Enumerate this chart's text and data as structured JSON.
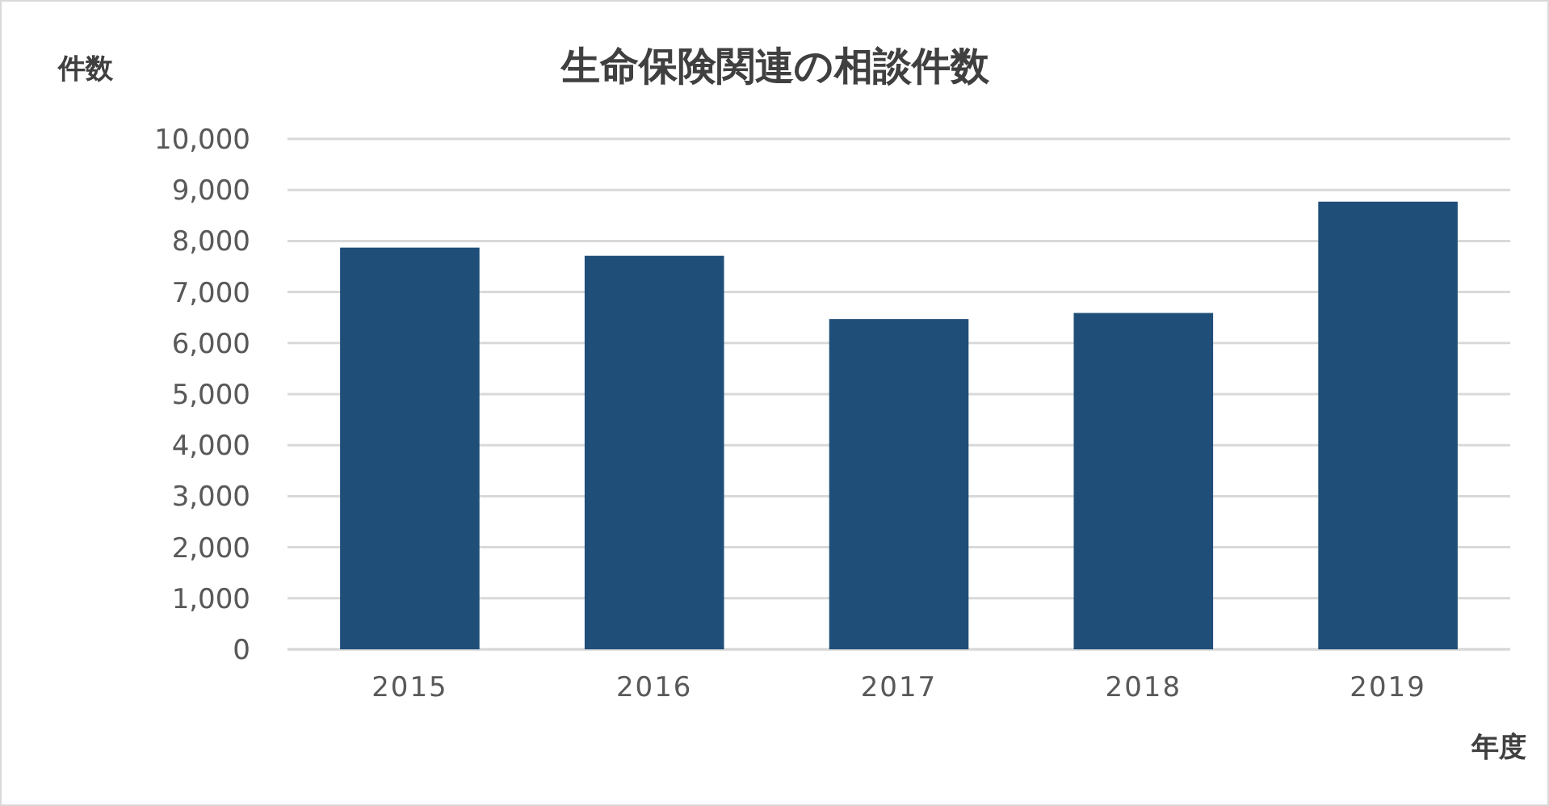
{
  "chart_data": {
    "type": "bar",
    "title": "生命保険関連の相談件数",
    "xlabel": "年度",
    "ylabel": "件数",
    "categories": [
      "2015",
      "2016",
      "2017",
      "2018",
      "2019"
    ],
    "values": [
      7870,
      7710,
      6470,
      6590,
      8770
    ],
    "color": "#1f4e79",
    "ylim": [
      0,
      10000
    ],
    "yticks": [
      {
        "value": 0,
        "label": "0"
      },
      {
        "value": 1000,
        "label": "1,000"
      },
      {
        "value": 2000,
        "label": "2,000"
      },
      {
        "value": 3000,
        "label": "3,000"
      },
      {
        "value": 4000,
        "label": "4,000"
      },
      {
        "value": 5000,
        "label": "5,000"
      },
      {
        "value": 6000,
        "label": "6,000"
      },
      {
        "value": 7000,
        "label": "7,000"
      },
      {
        "value": 8000,
        "label": "8,000"
      },
      {
        "value": 9000,
        "label": "9,000"
      },
      {
        "value": 10000,
        "label": "10,000"
      }
    ],
    "grid": "y"
  }
}
